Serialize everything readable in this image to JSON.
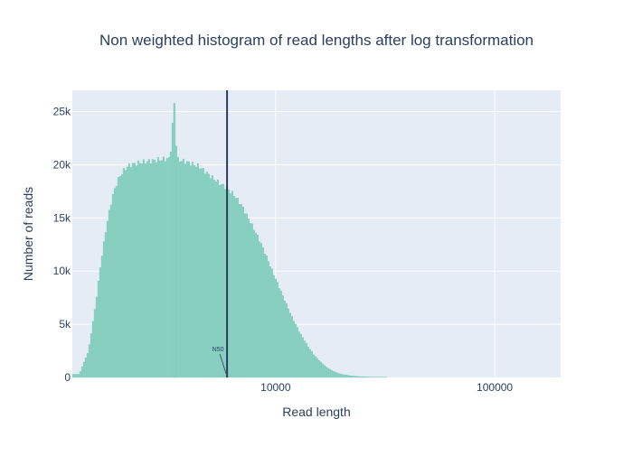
{
  "chart_data": {
    "type": "bar",
    "title": "Non weighted histogram of read lengths after log transformation",
    "xlabel": "Read length",
    "ylabel": "Number of reads",
    "x_scale": "log",
    "xlim": [
      1180,
      200000
    ],
    "ylim": [
      0,
      27000
    ],
    "x_ticks": [
      10000,
      100000
    ],
    "x_tick_labels": [
      "10000",
      "100000"
    ],
    "y_ticks": [
      0,
      5000,
      10000,
      15000,
      20000,
      25000
    ],
    "y_tick_labels": [
      "0",
      "5k",
      "10k",
      "15k",
      "20k",
      "25k"
    ],
    "grid": true,
    "legend": "none",
    "colors": {
      "bars": "#8fd3c3",
      "bar_edge": "#6cc3ae",
      "plot_bg": "#e5ecf6",
      "grid": "#ffffff",
      "n50_line": "#2a3f5f",
      "text": "#2a3f5f"
    },
    "series": [
      {
        "x": [
          1270,
          1400,
          1500,
          1600,
          1700,
          1800,
          1900,
          2000,
          2100,
          2200,
          2400,
          2600,
          2800,
          3000,
          3300,
          3450,
          3500,
          3550,
          3700,
          4000,
          4500,
          5000,
          5500,
          6000,
          6500,
          7000,
          7500,
          8000,
          8500,
          9000,
          9500,
          10000,
          11000,
          12000,
          13000,
          14000,
          15000,
          16000,
          17000,
          18000,
          19000,
          20000,
          22000,
          24000,
          26000,
          28000,
          30000,
          35000,
          40000,
          50000,
          60000,
          80000,
          100000,
          200000
        ],
        "values": [
          300,
          2500,
          6500,
          11000,
          14500,
          17000,
          18500,
          19300,
          19800,
          20000,
          20200,
          20300,
          20400,
          20500,
          20550,
          25800,
          23000,
          20500,
          20400,
          20200,
          19800,
          19000,
          18300,
          17800,
          17100,
          16200,
          15000,
          13900,
          12800,
          11600,
          10400,
          9300,
          7300,
          5500,
          4100,
          3000,
          2100,
          1500,
          1000,
          680,
          450,
          300,
          160,
          90,
          50,
          30,
          20,
          10,
          5,
          2,
          1,
          0,
          0,
          0
        ]
      }
    ],
    "n50": {
      "label": "N50",
      "value": 6000
    }
  }
}
